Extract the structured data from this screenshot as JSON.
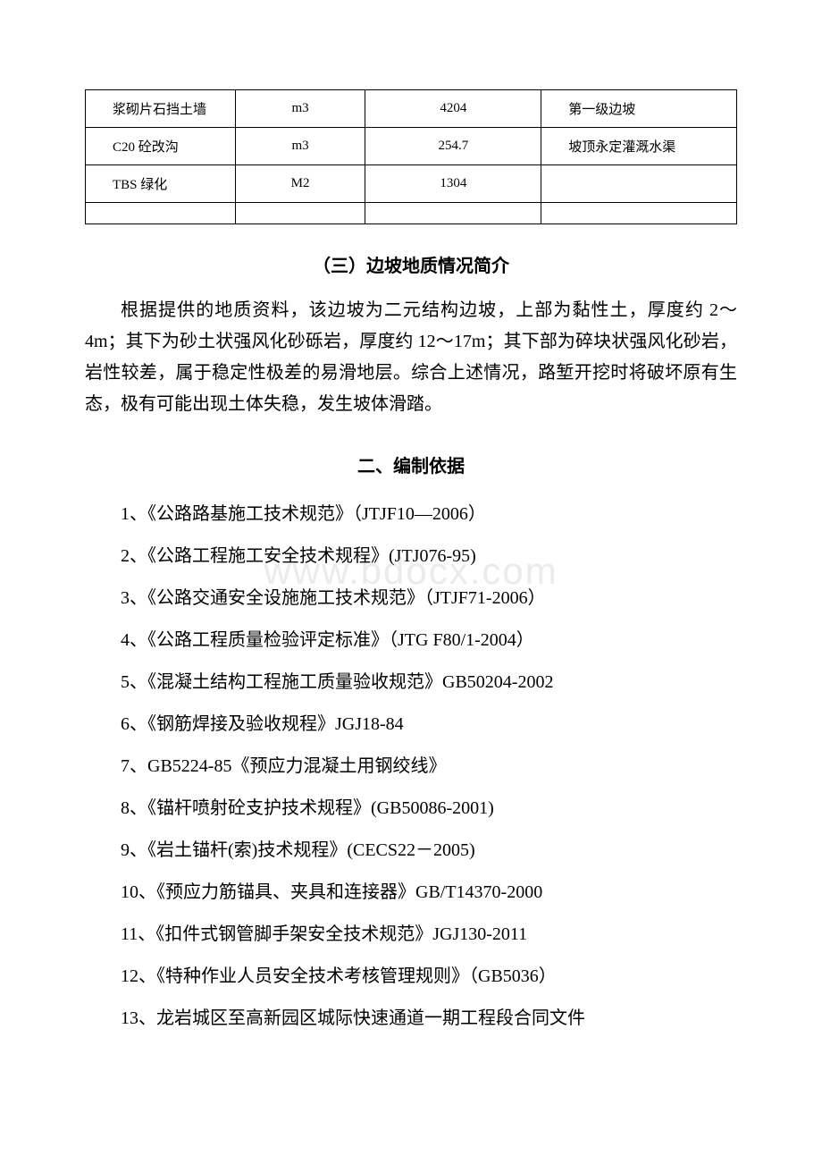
{
  "table": {
    "rows": [
      {
        "c1": "浆砌片石挡土墙",
        "c2": "m3",
        "c3": "4204",
        "c4": "第一级边坡"
      },
      {
        "c1": "C20 砼改沟",
        "c2": "m3",
        "c3": "254.7",
        "c4": "坡顶永定灌溉水渠"
      },
      {
        "c1": "TBS 绿化",
        "c2": "M2",
        "c3": "1304",
        "c4": ""
      }
    ]
  },
  "section3": {
    "heading": "（三）边坡地质情况简介",
    "paragraph": "根据提供的地质资料，该边坡为二元结构边坡，上部为黏性土，厚度约 2～4m；其下为砂土状强风化砂砾岩，厚度约 12～17m；其下部为碎块状强风化砂岩，岩性较差，属于稳定性极差的易滑地层。综合上述情况，路堑开挖时将破坏原有生态，极有可能出现土体失稳，发生坡体滑踏。"
  },
  "section_basis": {
    "heading": "二、编制依据",
    "items": [
      "1、《公路路基施工技术规范》（JTJF10—2006）",
      "2、《公路工程施工安全技术规程》(JTJ076-95)",
      "3、《公路交通安全设施施工技术规范》（JTJF71-2006）",
      "4、《公路工程质量检验评定标准》（JTG F80/1-2004）",
      "5、《混凝土结构工程施工质量验收规范》GB50204-2002",
      "6、《钢筋焊接及验收规程》JGJ18-84",
      "7、GB5224-85《预应力混凝土用钢绞线》",
      "8、《锚杆喷射砼支护技术规程》(GB50086-2001)",
      "9、《岩土锚杆(索)技术规程》(CECS22－2005)",
      "10、《预应力筋锚具、夹具和连接器》GB/T14370-2000",
      "11、《扣件式钢管脚手架安全技术规范》JGJ130-2011",
      "12、《特种作业人员安全技术考核管理规则》（GB5036）",
      "13、龙岩城区至高新园区城际快速通道一期工程段合同文件"
    ]
  },
  "watermark": "www.bdocx.com"
}
